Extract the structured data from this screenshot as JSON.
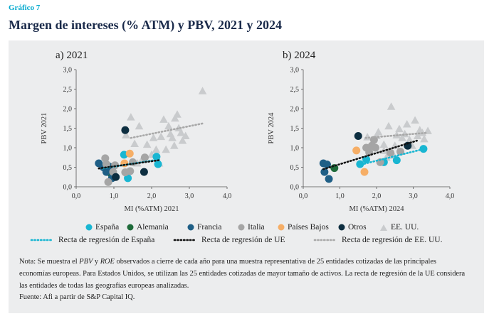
{
  "figure": {
    "kicker": "Gráfico 7",
    "title": "Margen de intereses (% ATM) y PBV, 2021 y 2024",
    "note_parts": [
      "Nota: Se muestra el ",
      "PBV",
      " y ",
      "ROE",
      " observados a cierre de cada año para una muestra representativa de 25 entidades cotizadas de las principales economías europeas. Para Estados Unidos, se utilizan las 25 entidades cotizadas de mayor tamaño de activos. La recta de regresión de la UE considera las entidades de todas las geografías europeas analizadas."
    ],
    "source": "Fuente: Afi a partir de S&P Capital IQ."
  },
  "legend": {
    "markers": [
      {
        "label": "España",
        "color": "#19B6D2",
        "shape": "circle"
      },
      {
        "label": "Alemania",
        "color": "#1E6B3A",
        "shape": "circle"
      },
      {
        "label": "Francia",
        "color": "#1F5F86",
        "shape": "circle"
      },
      {
        "label": "Italia",
        "color": "#A5A5A5",
        "shape": "circle"
      },
      {
        "label": "Países Bajos",
        "color": "#F6AE66",
        "shape": "circle"
      },
      {
        "label": "Otros",
        "color": "#0D2E40",
        "shape": "circle"
      },
      {
        "label": "EE. UU.",
        "color": "#C9CBCD",
        "shape": "triangle"
      }
    ],
    "lines": [
      {
        "label": "Recta de regresión de España",
        "color": "#19B6D2"
      },
      {
        "label": "Recta de regresión de UE",
        "color": "#111111"
      },
      {
        "label": "Recta de regresión de EE. UU.",
        "color": "#A8A8A8"
      }
    ]
  },
  "colors": {
    "España": "#19B6D2",
    "Alemania": "#1E6B3A",
    "Francia": "#1F5F86",
    "Italia": "#A5A5A5",
    "Países Bajos": "#F6AE66",
    "Otros": "#0D2E40",
    "EE. UU.": "#C9CBCD"
  },
  "chart_data": [
    {
      "type": "scatter",
      "subtitle": "a) 2021",
      "xlabel": "MI (%ATM) 2021",
      "ylabel": "PBV 2021",
      "xlim": [
        0,
        4
      ],
      "ylim": [
        0,
        3
      ],
      "xticks": [
        "0,0",
        "1,0",
        "2,0",
        "3,0",
        "4,0"
      ],
      "yticks": [
        "0,0",
        "0,5",
        "1,0",
        "1,5",
        "2,0",
        "2,5",
        "3,0"
      ],
      "series": [
        {
          "name": "España",
          "points": [
            [
              1.27,
              0.82
            ],
            [
              1.37,
              0.22
            ],
            [
              2.13,
              0.77
            ],
            [
              2.17,
              0.58
            ]
          ]
        },
        {
          "name": "Alemania",
          "points": [
            [
              0.93,
              0.33
            ]
          ]
        },
        {
          "name": "Francia",
          "points": [
            [
              0.6,
              0.6
            ],
            [
              0.72,
              0.5
            ],
            [
              0.8,
              0.38
            ],
            [
              0.87,
              0.52
            ],
            [
              0.95,
              0.22
            ]
          ]
        },
        {
          "name": "Italia",
          "points": [
            [
              0.77,
              0.73
            ],
            [
              0.8,
              0.58
            ],
            [
              0.85,
              0.12
            ],
            [
              0.98,
              0.38
            ],
            [
              1.03,
              0.55
            ],
            [
              1.3,
              0.37
            ],
            [
              1.43,
              0.4
            ],
            [
              1.82,
              0.75
            ],
            [
              1.5,
              0.63
            ]
          ]
        },
        {
          "name": "Países Bajos",
          "points": [
            [
              1.28,
              0.6
            ],
            [
              1.42,
              0.85
            ]
          ]
        },
        {
          "name": "Otros",
          "points": [
            [
              1.3,
              1.45
            ],
            [
              1.8,
              0.38
            ],
            [
              1.05,
              0.25
            ]
          ]
        },
        {
          "name": "EE. UU.",
          "points": [
            [
              1.32,
              1.32
            ],
            [
              1.45,
              1.78
            ],
            [
              1.55,
              1.1
            ],
            [
              1.62,
              0.6
            ],
            [
              1.67,
              1.55
            ],
            [
              1.88,
              1.08
            ],
            [
              2.05,
              1.25
            ],
            [
              2.12,
              0.95
            ],
            [
              2.25,
              1.28
            ],
            [
              2.32,
              1.72
            ],
            [
              2.38,
              0.95
            ],
            [
              2.45,
              1.55
            ],
            [
              2.5,
              1.35
            ],
            [
              2.55,
              1.25
            ],
            [
              2.62,
              1.75
            ],
            [
              2.68,
              1.85
            ],
            [
              2.72,
              1.5
            ],
            [
              2.78,
              1.38
            ],
            [
              2.82,
              1.18
            ],
            [
              2.9,
              1.3
            ],
            [
              3.35,
              2.45
            ],
            [
              2.2,
              0.6
            ],
            [
              2.0,
              0.82
            ],
            [
              1.75,
              0.7
            ],
            [
              2.6,
              1.05
            ]
          ]
        }
      ],
      "regressions": [
        {
          "name": "Recta de regresión de España",
          "from": [
            0.7,
            0.47
          ],
          "to": [
            2.2,
            0.7
          ]
        },
        {
          "name": "Recta de regresión de UE",
          "from": [
            0.6,
            0.47
          ],
          "to": [
            2.2,
            0.68
          ]
        },
        {
          "name": "Recta de regresión de EE. UU.",
          "from": [
            1.45,
            1.25
          ],
          "to": [
            3.35,
            1.62
          ]
        }
      ]
    },
    {
      "type": "scatter",
      "subtitle": "b) 2024",
      "xlabel": "MI (%ATM) 2024",
      "ylabel": "PBV 2024",
      "xlim": [
        0,
        4
      ],
      "ylim": [
        0,
        3
      ],
      "xticks": [
        "0,0",
        "1,0",
        "2,0",
        "3,0",
        "4,0"
      ],
      "yticks": [
        "0,0",
        "0,5",
        "1,0",
        "1,5",
        "2,0",
        "2,5",
        "3,0"
      ],
      "series": [
        {
          "name": "España",
          "points": [
            [
              1.55,
              0.58
            ],
            [
              1.72,
              0.7
            ],
            [
              2.2,
              0.63
            ],
            [
              2.55,
              0.68
            ],
            [
              3.28,
              0.97
            ]
          ]
        },
        {
          "name": "Alemania",
          "points": [
            [
              0.85,
              0.48
            ]
          ]
        },
        {
          "name": "Francia",
          "points": [
            [
              0.55,
              0.6
            ],
            [
              0.58,
              0.38
            ],
            [
              0.65,
              0.57
            ],
            [
              0.7,
              0.2
            ]
          ]
        },
        {
          "name": "Italia",
          "points": [
            [
              1.72,
              1.0
            ],
            [
              1.8,
              0.88
            ],
            [
              1.87,
              1.05
            ],
            [
              1.93,
              1.2
            ],
            [
              1.97,
              1.0
            ],
            [
              2.1,
              0.63
            ],
            [
              2.38,
              0.87
            ],
            [
              2.65,
              0.9
            ]
          ]
        },
        {
          "name": "Países Bajos",
          "points": [
            [
              1.45,
              0.93
            ],
            [
              1.67,
              0.38
            ]
          ]
        },
        {
          "name": "Otros",
          "points": [
            [
              1.5,
              1.3
            ],
            [
              2.85,
              1.05
            ]
          ]
        },
        {
          "name": "EE. UU.",
          "points": [
            [
              1.75,
              1.27
            ],
            [
              1.85,
              1.05
            ],
            [
              2.0,
              1.3
            ],
            [
              2.2,
              1.08
            ],
            [
              2.27,
              0.75
            ],
            [
              2.33,
              1.55
            ],
            [
              2.4,
              2.05
            ],
            [
              2.47,
              0.8
            ],
            [
              2.55,
              1.32
            ],
            [
              2.62,
              1.48
            ],
            [
              2.7,
              1.25
            ],
            [
              2.77,
              1.35
            ],
            [
              2.83,
              1.6
            ],
            [
              2.9,
              1.2
            ],
            [
              2.97,
              1.05
            ],
            [
              3.05,
              1.7
            ],
            [
              3.12,
              1.3
            ],
            [
              3.18,
              1.45
            ],
            [
              3.25,
              1.38
            ],
            [
              3.4,
              1.43
            ],
            [
              3.3,
              1.22
            ],
            [
              2.2,
              0.92
            ],
            [
              2.05,
              1.4
            ],
            [
              2.5,
              1.05
            ],
            [
              1.9,
              1.1
            ]
          ]
        }
      ],
      "regressions": [
        {
          "name": "Recta de regresión de España",
          "from": [
            1.5,
            0.55
          ],
          "to": [
            3.3,
            0.97
          ]
        },
        {
          "name": "Recta de regresión de UE",
          "from": [
            0.55,
            0.45
          ],
          "to": [
            3.1,
            1.18
          ]
        },
        {
          "name": "Recta de regresión de EE. UU.",
          "from": [
            1.7,
            1.25
          ],
          "to": [
            3.35,
            1.38
          ]
        }
      ]
    }
  ]
}
